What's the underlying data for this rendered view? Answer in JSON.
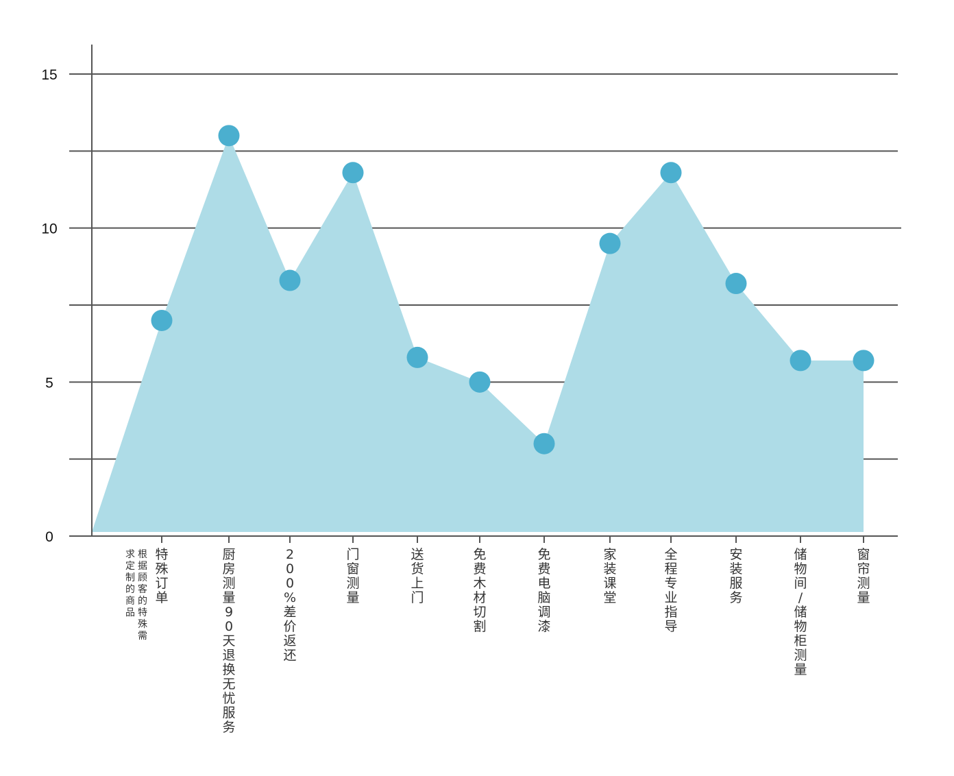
{
  "chart_data": {
    "type": "area",
    "categories": [
      "",
      "特殊订单",
      "厨房测量90天退换无忧服务",
      "200%差价返还",
      "门窗测量",
      "送货上门",
      "免费木材切割",
      "免费电脑调漆",
      "家装课堂",
      "全程专业指导",
      "安装服务",
      "储物间/储物柜测量",
      "窗帘测量"
    ],
    "category_notes": [
      "",
      "根据顾客的特殊需求定制的商品",
      "",
      "",
      "",
      "",
      "",
      "",
      "",
      "",
      "",
      "",
      ""
    ],
    "values": [
      0,
      7,
      13,
      8.3,
      11.8,
      5.8,
      5,
      3,
      9.5,
      11.8,
      8.2,
      5.7,
      5.7
    ],
    "ylim": [
      0,
      16
    ],
    "yticks": [
      0,
      5,
      10,
      15
    ],
    "grid_values": [
      2.5,
      5,
      7.5,
      10,
      12.5,
      15
    ],
    "title": "",
    "xlabel": "",
    "ylabel": "",
    "colors": {
      "area": "#aedce7",
      "marker": "#4bafcf",
      "grid": "#555555",
      "axis": "#555555"
    }
  }
}
